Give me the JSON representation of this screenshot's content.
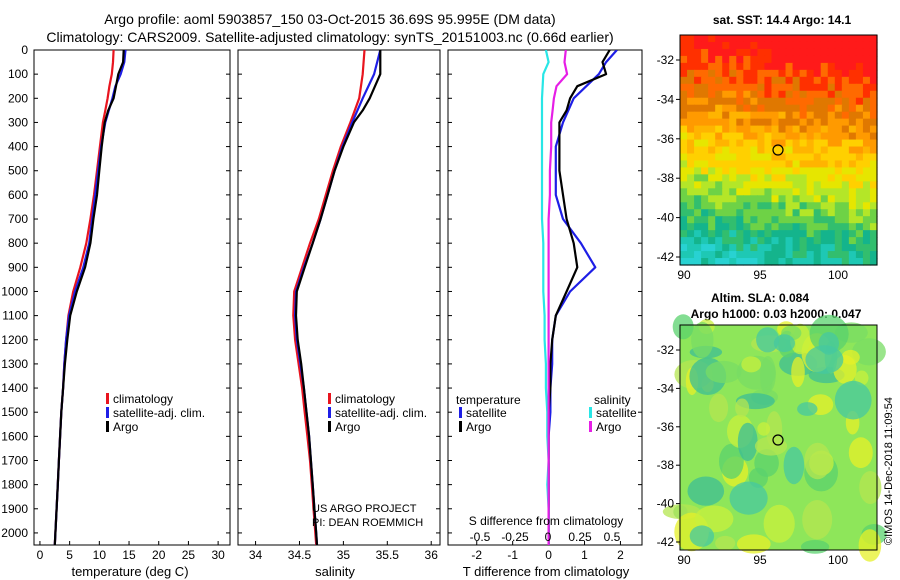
{
  "title_line1": "Argo profile: aoml 5903857_150 03-Oct-2015 36.69S 95.995E (DM data)",
  "title_line2": "Climatology: CARS2009. Satellite-adjusted climatology: synTS_20151003.nc (0.66d earlier)",
  "credit_vertical": "©IMOS 14-Dec-2018 11:09:54",
  "colors": {
    "climatology": "#e8141e",
    "satellite": "#1e1ee6",
    "argo": "#000000",
    "sal_satellite": "#28e6e6",
    "sal_argo": "#e61ee6"
  },
  "depth_axis": {
    "min": 0,
    "max": 2050,
    "ticks": [
      0,
      100,
      200,
      300,
      400,
      500,
      600,
      700,
      800,
      900,
      1000,
      1100,
      1200,
      1300,
      1400,
      1500,
      1600,
      1700,
      1800,
      1900,
      2000
    ]
  },
  "chart_data": [
    {
      "id": "temperature",
      "type": "line",
      "xlabel": "temperature (deg C)",
      "xlim": [
        -1,
        32
      ],
      "xticks": [
        0,
        5,
        10,
        15,
        20,
        25,
        30
      ],
      "legend": [
        "climatology",
        "satellite-adj. clim.",
        "Argo"
      ],
      "series": [
        {
          "name": "climatology",
          "depth": [
            0,
            50,
            100,
            150,
            200,
            250,
            300,
            400,
            500,
            600,
            700,
            800,
            900,
            1000,
            1100,
            1200,
            1300,
            1400,
            1500,
            1600,
            1700,
            1800,
            1900,
            2000,
            2050
          ],
          "values": [
            12.4,
            12.3,
            12.1,
            11.7,
            11.4,
            11.0,
            10.6,
            10.1,
            9.6,
            9.1,
            8.5,
            7.8,
            6.8,
            5.6,
            4.8,
            4.4,
            4.1,
            3.9,
            3.6,
            3.4,
            3.2,
            3.0,
            2.8,
            2.6,
            2.5
          ]
        },
        {
          "name": "satellite-adj. clim.",
          "depth": [
            0,
            50,
            100,
            150,
            200,
            250,
            300,
            400,
            500,
            600,
            700,
            800,
            900,
            1000,
            1100,
            1200,
            1300,
            1400,
            1500,
            1600,
            1700,
            1800,
            1900,
            2000,
            2050
          ],
          "values": [
            14.4,
            14.2,
            13.6,
            12.7,
            12.2,
            11.6,
            11.0,
            10.3,
            9.8,
            9.3,
            8.8,
            8.3,
            7.3,
            5.9,
            4.9,
            4.4,
            4.1,
            3.9,
            3.6,
            3.4,
            3.2,
            3.0,
            2.8,
            2.6,
            2.5
          ]
        },
        {
          "name": "Argo",
          "depth": [
            0,
            50,
            100,
            150,
            200,
            250,
            300,
            400,
            500,
            600,
            700,
            800,
            900,
            1000,
            1100,
            1200,
            1300,
            1400,
            1500,
            1600,
            1700,
            1800,
            1900,
            2000,
            2050
          ],
          "values": [
            14.1,
            14.0,
            13.2,
            12.8,
            12.4,
            11.5,
            10.9,
            10.4,
            10.0,
            9.6,
            9.0,
            8.5,
            7.6,
            6.2,
            5.1,
            4.6,
            4.2,
            3.9,
            3.6,
            3.4,
            3.2,
            3.0,
            2.8,
            2.6,
            2.5
          ]
        }
      ]
    },
    {
      "id": "salinity",
      "type": "line",
      "xlabel": "salinity",
      "xlim": [
        33.8,
        36.1
      ],
      "xticks": [
        34,
        34.5,
        35,
        35.5,
        36
      ],
      "xticklabels": [
        "34",
        "34.5",
        "35",
        "35.5",
        "36"
      ],
      "legend": [
        "climatology",
        "satellite-adj. clim.",
        "Argo"
      ],
      "annotation_line1": "US ARGO PROJECT",
      "annotation_line2": "PI: DEAN ROEMMICH",
      "series": [
        {
          "name": "climatology",
          "depth": [
            0,
            100,
            200,
            300,
            400,
            500,
            600,
            700,
            800,
            900,
            1000,
            1100,
            1200,
            1300,
            1400,
            1500,
            1600,
            1700,
            1800,
            1900,
            2000,
            2050
          ],
          "values": [
            35.24,
            35.22,
            35.18,
            35.08,
            34.97,
            34.88,
            34.8,
            34.72,
            34.62,
            34.53,
            34.44,
            34.43,
            34.45,
            34.49,
            34.53,
            34.56,
            34.59,
            34.62,
            34.64,
            34.66,
            34.68,
            34.69
          ]
        },
        {
          "name": "satellite-adj. clim.",
          "depth": [
            0,
            100,
            200,
            300,
            400,
            500,
            600,
            700,
            800,
            900,
            1000,
            1100,
            1200,
            1300,
            1400,
            1500,
            1600,
            1700,
            1800,
            1900,
            2000,
            2050
          ],
          "values": [
            35.42,
            35.35,
            35.22,
            35.1,
            34.99,
            34.9,
            34.82,
            34.74,
            34.65,
            34.55,
            34.46,
            34.45,
            34.47,
            34.51,
            34.55,
            34.58,
            34.61,
            34.63,
            34.65,
            34.67,
            34.69,
            34.7
          ]
        },
        {
          "name": "Argo",
          "depth": [
            0,
            100,
            150,
            200,
            250,
            300,
            400,
            500,
            600,
            700,
            800,
            900,
            1000,
            1100,
            1200,
            1300,
            1400,
            1500,
            1600,
            1700,
            1800,
            1900,
            2000,
            2050
          ],
          "values": [
            35.42,
            35.42,
            35.36,
            35.3,
            35.22,
            35.12,
            35.0,
            34.9,
            34.82,
            34.74,
            34.65,
            34.56,
            34.47,
            34.46,
            34.48,
            34.52,
            34.55,
            34.58,
            34.61,
            34.63,
            34.65,
            34.67,
            34.69,
            34.7
          ]
        }
      ]
    },
    {
      "id": "differences",
      "type": "line",
      "xlabel": "T difference from climatology",
      "xlim": [
        -2.8,
        2.6
      ],
      "xticks": [
        -2,
        -1,
        0,
        1,
        2
      ],
      "top_axis_label": "S difference from climatology",
      "top_ticks": [
        "-0.5",
        "-0.25",
        "0",
        "0.25",
        "0.5"
      ],
      "legend_temperature_title": "temperature",
      "legend_salinity_title": "salinity",
      "legend_temperature": [
        "satellite",
        "Argo"
      ],
      "legend_salinity": [
        "satellite",
        "Argo"
      ],
      "series": [
        {
          "name": "T satellite",
          "depth": [
            0,
            50,
            100,
            200,
            300,
            400,
            500,
            600,
            700,
            800,
            900,
            1000,
            1100,
            1200,
            1300,
            1400,
            1500,
            1600,
            1700,
            1800,
            1900,
            2000,
            2050
          ],
          "values": [
            1.9,
            1.6,
            1.4,
            0.7,
            0.4,
            0.2,
            0.2,
            0.2,
            0.4,
            0.9,
            1.3,
            0.6,
            0.2,
            0.1,
            0.1,
            0.05,
            0.05,
            0.0,
            0.0,
            0.0,
            0.0,
            0.0,
            0.0
          ]
        },
        {
          "name": "T Argo",
          "depth": [
            0,
            50,
            100,
            150,
            200,
            250,
            300,
            400,
            500,
            600,
            700,
            800,
            900,
            1000,
            1100,
            1200,
            1300,
            1400,
            1500,
            1600,
            1700,
            1800,
            1900,
            2000,
            2050
          ],
          "values": [
            1.7,
            1.5,
            1.6,
            0.8,
            0.6,
            0.5,
            0.3,
            0.3,
            0.3,
            0.4,
            0.5,
            0.7,
            0.8,
            0.5,
            0.2,
            0.1,
            0.05,
            0.05,
            0.0,
            0.0,
            0.0,
            0.0,
            0.0,
            0.0,
            0.0
          ]
        },
        {
          "name": "S satellite",
          "depth": [
            0,
            50,
            100,
            200,
            300,
            400,
            500,
            600,
            700,
            800,
            900,
            1000,
            1100,
            1200,
            1300,
            1400,
            1500,
            1600,
            1700,
            1800,
            1900,
            2000,
            2050
          ],
          "values": [
            -0.02,
            0.0,
            -0.04,
            -0.05,
            -0.05,
            -0.05,
            -0.05,
            -0.05,
            -0.05,
            -0.04,
            -0.04,
            -0.04,
            -0.03,
            -0.03,
            -0.02,
            -0.02,
            -0.01,
            -0.01,
            0.0,
            -0.01,
            0.0,
            0.0,
            0.0
          ]
        },
        {
          "name": "S Argo",
          "depth": [
            0,
            50,
            100,
            150,
            200,
            250,
            300,
            400,
            500,
            600,
            700,
            800,
            900,
            1000,
            1100,
            1200,
            1300,
            1400,
            1500,
            1600,
            1700,
            1800,
            1900,
            2000,
            2050
          ],
          "values": [
            0.13,
            0.12,
            0.14,
            0.06,
            0.04,
            0.03,
            0.02,
            0.02,
            0.01,
            0.01,
            0.0,
            0.0,
            0.0,
            0.0,
            0.0,
            0.0,
            0.0,
            0.0,
            0.0,
            0.0,
            0.0,
            0.0,
            0.0,
            0.0,
            0.0
          ]
        }
      ]
    },
    {
      "id": "sst_map",
      "type": "heatmap",
      "title": "sat. SST: 14.4 Argo: 14.1",
      "xticks": [
        "90",
        "95",
        "100"
      ],
      "yticks": [
        "-32",
        "-34",
        "-36",
        "-38",
        "-40",
        "-42"
      ]
    },
    {
      "id": "sla_map",
      "type": "heatmap",
      "title_line1": "Altim. SLA: 0.084",
      "title_line2": "Argo h1000: 0.03 h2000: 0.047",
      "xticks": [
        "90",
        "95",
        "100"
      ],
      "yticks": [
        "-32",
        "-34",
        "-36",
        "-38",
        "-40",
        "-42"
      ]
    }
  ]
}
